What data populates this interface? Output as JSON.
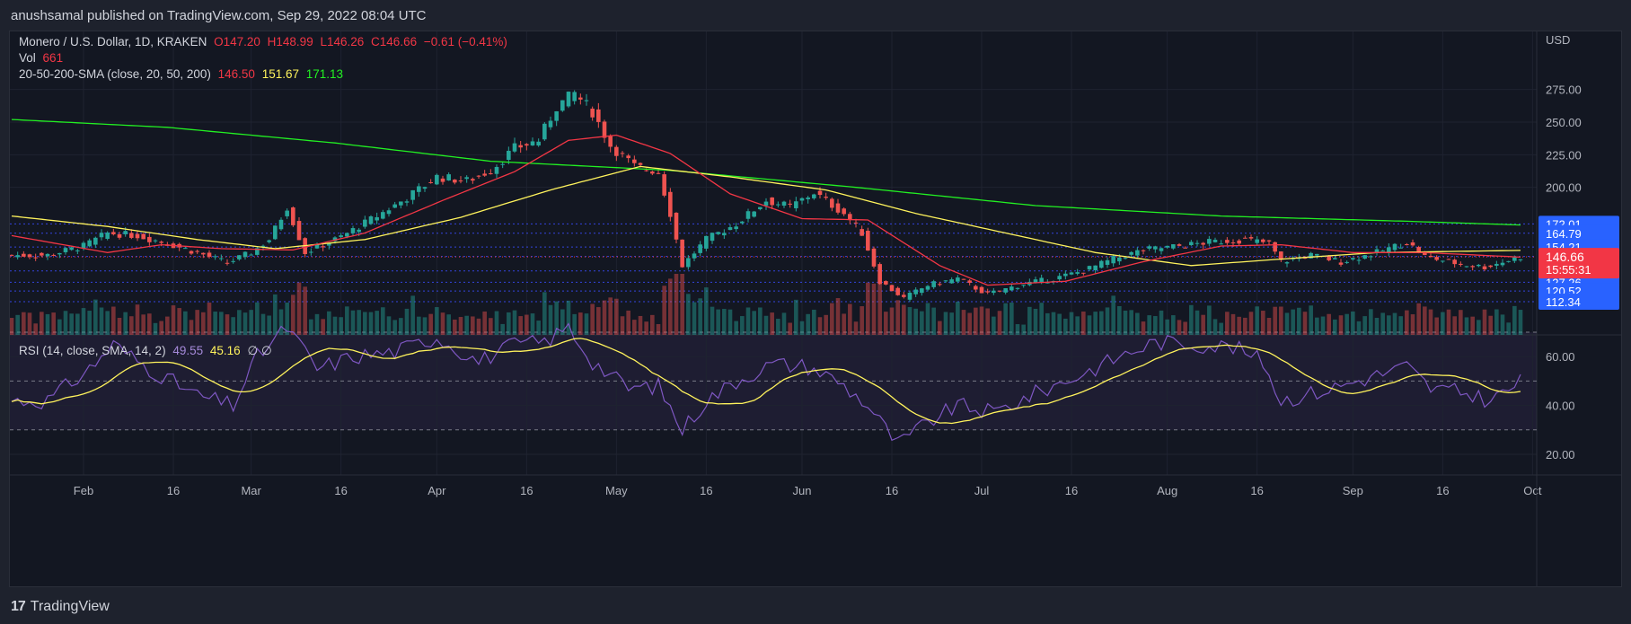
{
  "header": {
    "publisher_line": "anushsamal published on TradingView.com, Sep 29, 2022 08:04 UTC"
  },
  "footer": {
    "brand": "TradingView"
  },
  "legend": {
    "symbol": "Monero / U.S. Dollar, 1D, KRAKEN",
    "open": "O147.20",
    "high": "H148.99",
    "low": "L146.26",
    "close": "C146.66",
    "change": "−0.61 (−0.41%)",
    "vol_label": "Vol",
    "vol_value": "661",
    "sma_label": "20-50-200-SMA (close, 20, 50, 200)",
    "sma20": "146.50",
    "sma50": "151.67",
    "sma200": "171.13",
    "rsi_label": "RSI (14, close, SMA, 14, 2)",
    "rsi_value": "49.55",
    "rsi_sma_value": "45.16",
    "rsi_extra": "∅ ∅"
  },
  "colors": {
    "up": "#26a69a",
    "down": "#ef5350",
    "sma20": "#f23645",
    "sma50": "#fff35c",
    "sma200": "#22f022",
    "rsi": "#7e57c2",
    "rsi_sma": "#fff35c",
    "price_tag": "#f23645",
    "level_tag": "#2962ff",
    "background": "#131722"
  },
  "chart_data": {
    "type": "candlestick",
    "title": "Monero / U.S. Dollar, 1D, KRAKEN",
    "currency_label": "USD",
    "x_ticks": [
      "Feb",
      "16",
      "Mar",
      "16",
      "Apr",
      "16",
      "May",
      "16",
      "Jun",
      "16",
      "Jul",
      "16",
      "Aug",
      "16",
      "Sep",
      "16",
      "Oct"
    ],
    "y_ticks": [
      "275.00",
      "250.00",
      "225.00",
      "200.00"
    ],
    "y_axis_level_labels": [
      "172.01",
      "164.79",
      "154.21",
      "146.99",
      "135.92",
      "127.26",
      "120.52",
      "112.34"
    ],
    "horizontal_levels": [
      172.01,
      164.79,
      154.21,
      146.99,
      135.92,
      127.26,
      120.52,
      112.34
    ],
    "last_price": {
      "value": "146.66",
      "countdown": "15:55:31"
    },
    "price_keypoints": [
      {
        "date": "2022-01-26",
        "close": 148
      },
      {
        "date": "2022-02-01",
        "close": 155
      },
      {
        "date": "2022-02-05",
        "close": 165
      },
      {
        "date": "2022-02-10",
        "close": 163
      },
      {
        "date": "2022-02-15",
        "close": 157
      },
      {
        "date": "2022-02-20",
        "close": 150
      },
      {
        "date": "2022-02-25",
        "close": 142
      },
      {
        "date": "2022-03-01",
        "close": 150
      },
      {
        "date": "2022-03-04",
        "close": 160
      },
      {
        "date": "2022-03-07",
        "close": 185
      },
      {
        "date": "2022-03-10",
        "close": 150
      },
      {
        "date": "2022-03-16",
        "close": 162
      },
      {
        "date": "2022-03-22",
        "close": 178
      },
      {
        "date": "2022-03-27",
        "close": 192
      },
      {
        "date": "2022-04-01",
        "close": 208
      },
      {
        "date": "2022-04-06",
        "close": 205
      },
      {
        "date": "2022-04-10",
        "close": 213
      },
      {
        "date": "2022-04-14",
        "close": 230
      },
      {
        "date": "2022-04-18",
        "close": 236
      },
      {
        "date": "2022-04-21",
        "close": 262
      },
      {
        "date": "2022-04-24",
        "close": 272
      },
      {
        "date": "2022-04-27",
        "close": 258
      },
      {
        "date": "2022-04-30",
        "close": 232
      },
      {
        "date": "2022-05-04",
        "close": 216
      },
      {
        "date": "2022-05-08",
        "close": 212
      },
      {
        "date": "2022-05-10",
        "close": 180
      },
      {
        "date": "2022-05-12",
        "close": 140
      },
      {
        "date": "2022-05-16",
        "close": 160
      },
      {
        "date": "2022-05-21",
        "close": 172
      },
      {
        "date": "2022-05-26",
        "close": 190
      },
      {
        "date": "2022-05-30",
        "close": 185
      },
      {
        "date": "2022-06-03",
        "close": 196
      },
      {
        "date": "2022-06-08",
        "close": 180
      },
      {
        "date": "2022-06-11",
        "close": 165
      },
      {
        "date": "2022-06-14",
        "close": 128
      },
      {
        "date": "2022-06-18",
        "close": 115
      },
      {
        "date": "2022-06-22",
        "close": 125
      },
      {
        "date": "2022-06-27",
        "close": 130
      },
      {
        "date": "2022-07-02",
        "close": 118
      },
      {
        "date": "2022-07-08",
        "close": 126
      },
      {
        "date": "2022-07-13",
        "close": 130
      },
      {
        "date": "2022-07-18",
        "close": 136
      },
      {
        "date": "2022-07-23",
        "close": 145
      },
      {
        "date": "2022-07-28",
        "close": 152
      },
      {
        "date": "2022-08-03",
        "close": 155
      },
      {
        "date": "2022-08-08",
        "close": 158
      },
      {
        "date": "2022-08-14",
        "close": 160
      },
      {
        "date": "2022-08-18",
        "close": 157
      },
      {
        "date": "2022-08-20",
        "close": 143
      },
      {
        "date": "2022-08-25",
        "close": 148
      },
      {
        "date": "2022-08-30",
        "close": 143
      },
      {
        "date": "2022-09-05",
        "close": 150
      },
      {
        "date": "2022-09-10",
        "close": 158
      },
      {
        "date": "2022-09-13",
        "close": 147
      },
      {
        "date": "2022-09-19",
        "close": 141
      },
      {
        "date": "2022-09-23",
        "close": 139
      },
      {
        "date": "2022-09-29",
        "close": 146.66
      }
    ],
    "rsi": {
      "upper_band": 70,
      "middle_band": 50,
      "lower_band": 30,
      "y_ticks": [
        "60.00",
        "40.00",
        "20.00"
      ],
      "keypoints": [
        {
          "date": "2022-01-26",
          "rsi": 42
        },
        {
          "date": "2022-02-02",
          "rsi": 55
        },
        {
          "date": "2022-02-06",
          "rsi": 65
        },
        {
          "date": "2022-02-12",
          "rsi": 55
        },
        {
          "date": "2022-02-20",
          "rsi": 44
        },
        {
          "date": "2022-02-26",
          "rsi": 40
        },
        {
          "date": "2022-03-02",
          "rsi": 60
        },
        {
          "date": "2022-03-07",
          "rsi": 72
        },
        {
          "date": "2022-03-12",
          "rsi": 55
        },
        {
          "date": "2022-03-18",
          "rsi": 60
        },
        {
          "date": "2022-03-25",
          "rsi": 62
        },
        {
          "date": "2022-04-01",
          "rsi": 68
        },
        {
          "date": "2022-04-08",
          "rsi": 58
        },
        {
          "date": "2022-04-14",
          "rsi": 65
        },
        {
          "date": "2022-04-19",
          "rsi": 66
        },
        {
          "date": "2022-04-23",
          "rsi": 72
        },
        {
          "date": "2022-04-27",
          "rsi": 58
        },
        {
          "date": "2022-05-03",
          "rsi": 47
        },
        {
          "date": "2022-05-08",
          "rsi": 48
        },
        {
          "date": "2022-05-12",
          "rsi": 30
        },
        {
          "date": "2022-05-16",
          "rsi": 42
        },
        {
          "date": "2022-05-21",
          "rsi": 50
        },
        {
          "date": "2022-05-27",
          "rsi": 57
        },
        {
          "date": "2022-06-02",
          "rsi": 56
        },
        {
          "date": "2022-06-07",
          "rsi": 50
        },
        {
          "date": "2022-06-12",
          "rsi": 40
        },
        {
          "date": "2022-06-17",
          "rsi": 24
        },
        {
          "date": "2022-06-22",
          "rsi": 33
        },
        {
          "date": "2022-06-27",
          "rsi": 40
        },
        {
          "date": "2022-07-03",
          "rsi": 37
        },
        {
          "date": "2022-07-10",
          "rsi": 45
        },
        {
          "date": "2022-07-17",
          "rsi": 52
        },
        {
          "date": "2022-07-24",
          "rsi": 60
        },
        {
          "date": "2022-07-30",
          "rsi": 66
        },
        {
          "date": "2022-08-06",
          "rsi": 65
        },
        {
          "date": "2022-08-12",
          "rsi": 64
        },
        {
          "date": "2022-08-17",
          "rsi": 58
        },
        {
          "date": "2022-08-20",
          "rsi": 42
        },
        {
          "date": "2022-08-27",
          "rsi": 46
        },
        {
          "date": "2022-09-03",
          "rsi": 51
        },
        {
          "date": "2022-09-10",
          "rsi": 56
        },
        {
          "date": "2022-09-14",
          "rsi": 47
        },
        {
          "date": "2022-09-20",
          "rsi": 45
        },
        {
          "date": "2022-09-24",
          "rsi": 42
        },
        {
          "date": "2022-09-29",
          "rsi": 49.55
        }
      ]
    },
    "sma20_keypoints": [
      {
        "date": "2022-01-20",
        "v": 163
      },
      {
        "date": "2022-02-05",
        "v": 150
      },
      {
        "date": "2022-02-14",
        "v": 156
      },
      {
        "date": "2022-02-24",
        "v": 153
      },
      {
        "date": "2022-03-08",
        "v": 152
      },
      {
        "date": "2022-03-20",
        "v": 165
      },
      {
        "date": "2022-04-02",
        "v": 190
      },
      {
        "date": "2022-04-14",
        "v": 212
      },
      {
        "date": "2022-04-23",
        "v": 236
      },
      {
        "date": "2022-05-01",
        "v": 240
      },
      {
        "date": "2022-05-10",
        "v": 226
      },
      {
        "date": "2022-05-20",
        "v": 195
      },
      {
        "date": "2022-06-01",
        "v": 176
      },
      {
        "date": "2022-06-12",
        "v": 175
      },
      {
        "date": "2022-06-24",
        "v": 140
      },
      {
        "date": "2022-07-02",
        "v": 125
      },
      {
        "date": "2022-07-15",
        "v": 128
      },
      {
        "date": "2022-07-28",
        "v": 143
      },
      {
        "date": "2022-08-10",
        "v": 155
      },
      {
        "date": "2022-08-20",
        "v": 156
      },
      {
        "date": "2022-09-01",
        "v": 150
      },
      {
        "date": "2022-09-13",
        "v": 150
      },
      {
        "date": "2022-09-29",
        "v": 146.5
      }
    ],
    "sma50_keypoints": [
      {
        "date": "2022-01-20",
        "v": 178
      },
      {
        "date": "2022-02-05",
        "v": 170
      },
      {
        "date": "2022-02-20",
        "v": 160
      },
      {
        "date": "2022-03-05",
        "v": 153
      },
      {
        "date": "2022-03-20",
        "v": 160
      },
      {
        "date": "2022-04-05",
        "v": 177
      },
      {
        "date": "2022-04-20",
        "v": 198
      },
      {
        "date": "2022-05-05",
        "v": 216
      },
      {
        "date": "2022-05-20",
        "v": 208
      },
      {
        "date": "2022-06-05",
        "v": 198
      },
      {
        "date": "2022-06-20",
        "v": 180
      },
      {
        "date": "2022-07-05",
        "v": 165
      },
      {
        "date": "2022-07-20",
        "v": 150
      },
      {
        "date": "2022-08-05",
        "v": 140
      },
      {
        "date": "2022-08-20",
        "v": 145
      },
      {
        "date": "2022-09-05",
        "v": 150
      },
      {
        "date": "2022-09-29",
        "v": 151.67
      }
    ],
    "sma200_keypoints": [
      {
        "date": "2022-01-20",
        "v": 252
      },
      {
        "date": "2022-02-15",
        "v": 246
      },
      {
        "date": "2022-03-15",
        "v": 234
      },
      {
        "date": "2022-04-10",
        "v": 220
      },
      {
        "date": "2022-05-10",
        "v": 213
      },
      {
        "date": "2022-06-10",
        "v": 200
      },
      {
        "date": "2022-07-10",
        "v": 186
      },
      {
        "date": "2022-08-10",
        "v": 178
      },
      {
        "date": "2022-09-10",
        "v": 174
      },
      {
        "date": "2022-09-29",
        "v": 171.13
      }
    ]
  }
}
